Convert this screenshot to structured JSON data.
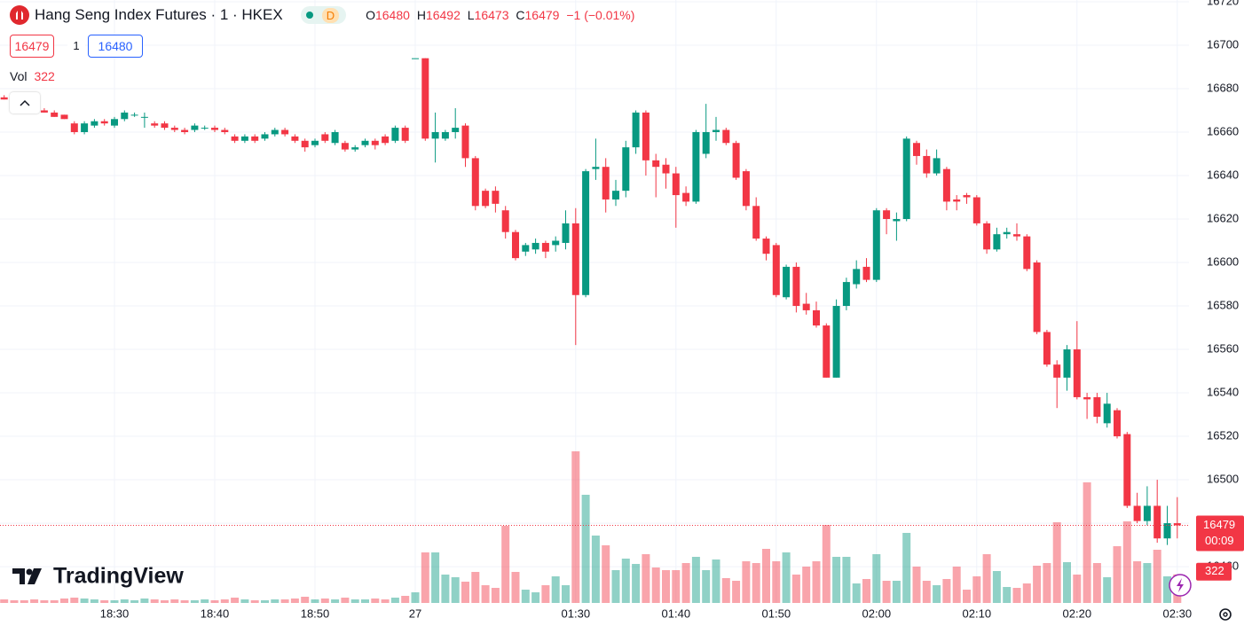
{
  "chart_data": {
    "type": "candlestick",
    "title": "Hang Seng Index Futures · 1 · HKEX",
    "interval_badge": "D",
    "ohlc_labels": [
      "O",
      "H",
      "L",
      "C"
    ],
    "change": "−1 (−0.01%)",
    "quote": {
      "bid": 16479,
      "spread": 1,
      "ask": 16480
    },
    "volume_label": "Vol",
    "countdown": "00:09",
    "brand": "TradingView",
    "up_color": "#089981",
    "down_color": "#f23645",
    "grid": true,
    "categories": [
      null,
      null,
      null,
      null,
      null,
      null,
      null,
      null,
      null,
      null,
      null,
      "18:30",
      null,
      null,
      null,
      null,
      null,
      null,
      null,
      null,
      null,
      "18:40",
      null,
      null,
      null,
      null,
      null,
      null,
      null,
      null,
      null,
      "18:50",
      null,
      null,
      null,
      null,
      null,
      null,
      null,
      null,
      null,
      "27",
      null,
      null,
      null,
      null,
      null,
      null,
      null,
      null,
      null,
      null,
      null,
      null,
      null,
      null,
      null,
      "01:30",
      null,
      null,
      null,
      null,
      null,
      null,
      null,
      null,
      null,
      "01:40",
      null,
      null,
      null,
      null,
      null,
      null,
      null,
      null,
      null,
      "01:50",
      null,
      null,
      null,
      null,
      null,
      null,
      null,
      null,
      null,
      "02:00",
      null,
      null,
      null,
      null,
      null,
      null,
      null,
      null,
      null,
      "02:10",
      null,
      null,
      null,
      null,
      null,
      null,
      null,
      null,
      null,
      "02:20",
      null,
      null,
      null,
      null,
      null,
      null,
      null,
      null,
      null,
      "02:30"
    ],
    "open": [
      16676,
      16675,
      16674,
      16671,
      16670,
      16669,
      16668,
      16664,
      16660,
      16663,
      16665,
      16663,
      16666,
      16668,
      16667,
      16664,
      16664,
      16662,
      16661,
      16661,
      16662,
      16662,
      16661,
      16658,
      16656,
      16658,
      16657,
      16659,
      16661,
      16658,
      16656,
      16654,
      16659,
      16655,
      16655,
      16652,
      16654,
      16656,
      16658,
      16656,
      16662,
      16694,
      16694,
      16657,
      16657,
      16660,
      16663,
      16648,
      16633,
      16633,
      16624,
      16614,
      16605,
      16606,
      16609,
      16608,
      16609,
      16618,
      16585,
      16643,
      16644,
      16629,
      16633,
      16653,
      16669,
      16647,
      16645,
      16641,
      16632,
      16628,
      16650,
      16660,
      16661,
      16655,
      16642,
      16626,
      16611,
      16608,
      16584,
      16598,
      16581,
      16578,
      16571,
      16547,
      16580,
      16590,
      16598,
      16592,
      16624,
      16619,
      16620,
      16655,
      16649,
      16641,
      16643,
      16629,
      16631,
      16630,
      16618,
      16606,
      16613,
      16613,
      16612,
      16600,
      16568,
      16553,
      16547,
      16560,
      16538,
      16538,
      16526,
      16532,
      16521,
      16488,
      16481,
      16488,
      16473,
      16480
    ],
    "high": [
      16677,
      16676,
      16675,
      16672,
      16671,
      16670,
      16668,
      16665,
      16665,
      16666,
      16666,
      16667,
      16670,
      16669,
      16669,
      16665,
      16665,
      16663,
      16662,
      16664,
      16663,
      16663,
      16662,
      16659,
      16659,
      16659,
      16660,
      16662,
      16662,
      16659,
      16657,
      16657,
      16660,
      16661,
      16656,
      16654,
      16657,
      16657,
      16659,
      16663,
      16663,
      16694,
      16694,
      16669,
      16661,
      16671,
      16664,
      16649,
      16634,
      16635,
      16626,
      16615,
      16609,
      16611,
      16610,
      16612,
      16624,
      16625,
      16643,
      16657,
      16648,
      16638,
      16656,
      16670,
      16670,
      16650,
      16648,
      16644,
      16635,
      16661,
      16673,
      16667,
      16662,
      16656,
      16643,
      16630,
      16612,
      16609,
      16599,
      16600,
      16586,
      16582,
      16572,
      16583,
      16593,
      16601,
      16602,
      16625,
      16625,
      16623,
      16658,
      16656,
      16652,
      16652,
      16644,
      16631,
      16632,
      16631,
      16619,
      16616,
      16616,
      16618,
      16613,
      16601,
      16569,
      16555,
      16562,
      16573,
      16540,
      16540,
      16540,
      16533,
      16522,
      16494,
      16497,
      16500,
      16488,
      16492
    ],
    "low": [
      16675,
      16673,
      16672,
      16669,
      16669,
      16667,
      16666,
      16659,
      16659,
      16662,
      16663,
      16662,
      16665,
      16667,
      16662,
      16662,
      16661,
      16660,
      16659,
      16660,
      16661,
      16660,
      16659,
      16655,
      16655,
      16655,
      16656,
      16658,
      16658,
      16655,
      16651,
      16653,
      16655,
      16654,
      16651,
      16651,
      16653,
      16652,
      16654,
      16655,
      16655,
      16694,
      16656,
      16646,
      16656,
      16657,
      16644,
      16624,
      16625,
      16623,
      16611,
      16601,
      16603,
      16604,
      16602,
      16605,
      16606,
      16562,
      16584,
      16638,
      16623,
      16626,
      16630,
      16650,
      16640,
      16630,
      16634,
      16616,
      16626,
      16627,
      16648,
      16656,
      16654,
      16638,
      16624,
      16610,
      16601,
      16584,
      16583,
      16577,
      16576,
      16570,
      16547,
      16547,
      16578,
      16588,
      16591,
      16591,
      16613,
      16610,
      16619,
      16645,
      16639,
      16640,
      16624,
      16624,
      16627,
      16617,
      16604,
      16605,
      16611,
      16610,
      16596,
      16567,
      16552,
      16533,
      16541,
      16537,
      16528,
      16526,
      16524,
      16519,
      16487,
      16480,
      16479,
      16471,
      16470,
      16473
    ],
    "close": [
      16675,
      16674,
      16672,
      16670,
      16669,
      16667,
      16666,
      16660,
      16664,
      16665,
      16664,
      16666,
      16669,
      16668,
      16667,
      16663,
      16662,
      16661,
      16660,
      16663,
      16662,
      16661,
      16660,
      16656,
      16658,
      16656,
      16659,
      16661,
      16659,
      16656,
      16653,
      16656,
      16656,
      16660,
      16652,
      16653,
      16656,
      16654,
      16655,
      16662,
      16656,
      16694,
      16657,
      16660,
      16660,
      16662,
      16648,
      16626,
      16626,
      16627,
      16614,
      16602,
      16608,
      16609,
      16605,
      16610,
      16618,
      16585,
      16642,
      16644,
      16629,
      16633,
      16653,
      16669,
      16647,
      16644,
      16641,
      16631,
      16628,
      16660,
      16660,
      16661,
      16655,
      16639,
      16626,
      16611,
      16604,
      16585,
      16598,
      16580,
      16578,
      16571,
      16547,
      16580,
      16591,
      16597,
      16592,
      16624,
      16620,
      16620,
      16657,
      16649,
      16641,
      16648,
      16628,
      16628,
      16630,
      16618,
      16606,
      16613,
      16614,
      16612,
      16597,
      16568,
      16553,
      16547,
      16560,
      16538,
      16537,
      16529,
      16535,
      16520,
      16488,
      16481,
      16488,
      16473,
      16480,
      16479
    ],
    "volume": [
      40,
      30,
      30,
      40,
      30,
      30,
      50,
      60,
      50,
      40,
      30,
      30,
      40,
      30,
      50,
      40,
      30,
      40,
      30,
      30,
      40,
      30,
      40,
      60,
      40,
      30,
      30,
      40,
      40,
      50,
      70,
      40,
      50,
      40,
      60,
      40,
      40,
      50,
      40,
      60,
      80,
      120,
      570,
      570,
      320,
      290,
      240,
      350,
      200,
      170,
      870,
      350,
      150,
      120,
      200,
      300,
      200,
      1710,
      1220,
      760,
      650,
      370,
      500,
      440,
      550,
      400,
      370,
      370,
      450,
      520,
      370,
      490,
      280,
      250,
      470,
      450,
      610,
      470,
      570,
      320,
      410,
      470,
      880,
      520,
      520,
      220,
      270,
      550,
      250,
      250,
      790,
      410,
      250,
      200,
      270,
      410,
      150,
      300,
      550,
      360,
      180,
      170,
      220,
      420,
      450,
      910,
      460,
      320,
      1360,
      450,
      290,
      640,
      920,
      470,
      450,
      600,
      300,
      322
    ],
    "ylim": [
      16443.3,
      16720.8
    ],
    "yticks": [
      16460,
      16480,
      16500,
      16520,
      16540,
      16560,
      16580,
      16600,
      16620,
      16640,
      16660,
      16680,
      16700,
      16720
    ],
    "volume_ylim": [
      0,
      6800
    ]
  }
}
